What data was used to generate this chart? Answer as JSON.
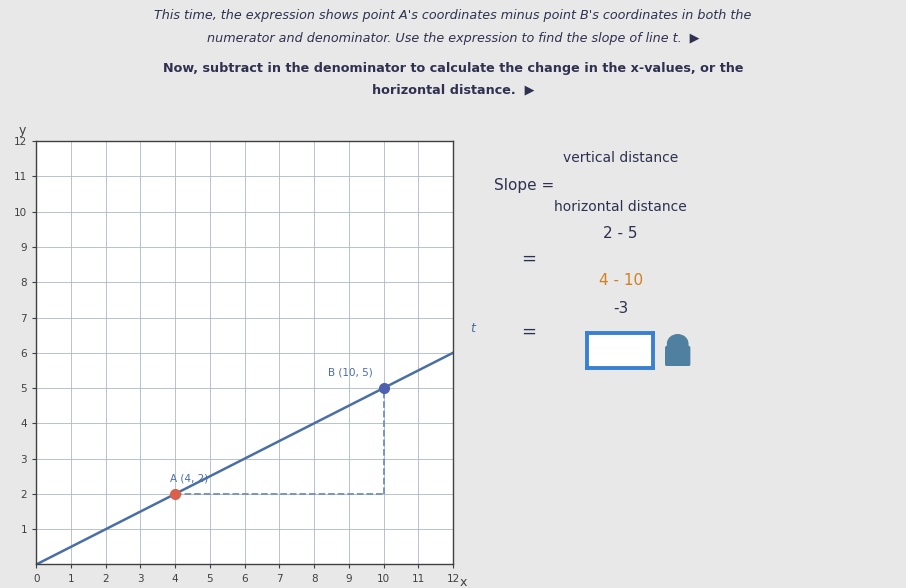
{
  "bg_color": "#e8e8e8",
  "title_line1": "This time, the expression shows point A's coordinates minus point B's coordinates in both the",
  "title_line2": "numerator and denominator. Use the expression to find the slope of line t.",
  "subtitle_line1": "Now, subtract in the denominator to calculate the change in the x-values, or the",
  "subtitle_line2": "horizontal distance.",
  "point_A": [
    4,
    2
  ],
  "point_B": [
    10,
    5
  ],
  "point_A_label": "A (4, 2)",
  "point_B_label": "B (10, 5)",
  "line_color": "#4a6fa5",
  "point_A_color": "#d9604a",
  "point_B_color": "#5060b0",
  "dashed_color": "#7090c0",
  "line_t_label": "t",
  "grid_color": "#b0b8c8",
  "axis_color": "#404040",
  "xlim": [
    0,
    12
  ],
  "ylim": [
    0,
    12
  ],
  "xticks": [
    0,
    1,
    2,
    3,
    4,
    5,
    6,
    7,
    8,
    9,
    10,
    11,
    12
  ],
  "yticks": [
    1,
    2,
    3,
    4,
    5,
    6,
    7,
    8,
    9,
    10,
    11,
    12
  ],
  "text_color": "#303050",
  "frac_den_highlight": "#d08020",
  "box_color": "#3a80d0",
  "hint_icon_color": "#5080a0"
}
